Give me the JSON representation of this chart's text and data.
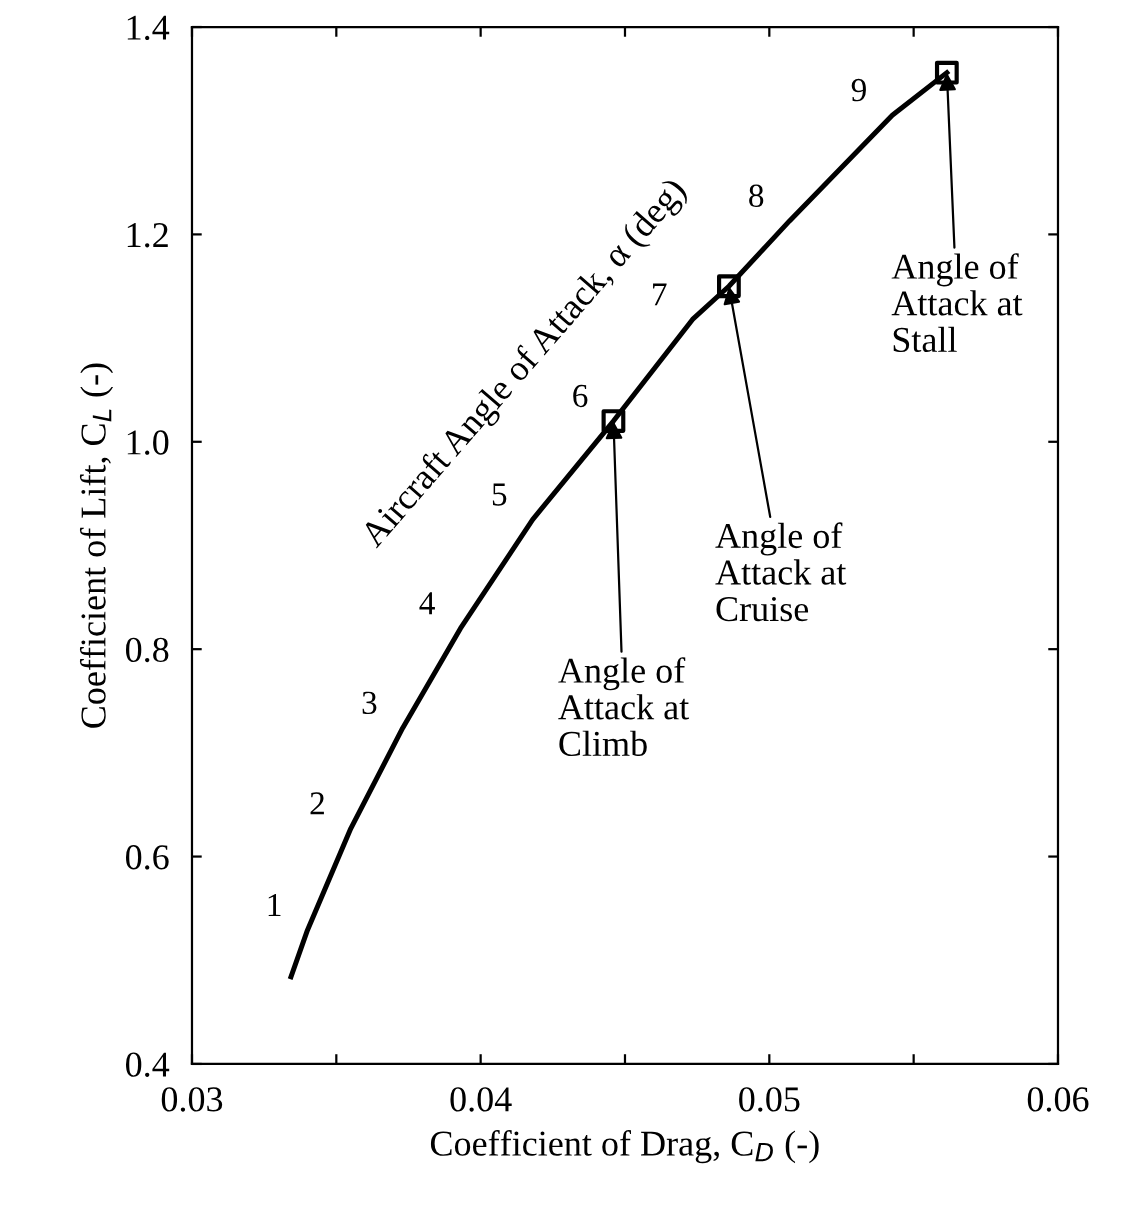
{
  "chart_data": {
    "type": "line",
    "xlabel": "Coefficient of Drag, C$_{D}$ (-)",
    "ylabel": "Coefficient of Lift, C$_{L}$ (-)",
    "xlim": [
      0.03,
      0.06
    ],
    "xticks": [
      0.03,
      {
        "value": 0.035,
        "label": null
      },
      0.04,
      {
        "value": 0.045,
        "label": null
      },
      0.05,
      {
        "value": 0.055,
        "label": null
      },
      0.06
    ],
    "ylim": [
      0.4,
      1.4
    ],
    "yticks": [
      0.4,
      0.6,
      0.8,
      {
        "value": 1.0,
        "label": "1.0"
      },
      1.2,
      1.4
    ],
    "grid": false,
    "legend": false,
    "series": [
      {
        "color": "#000000",
        "marker": "none",
        "line_style": "solid",
        "x": [
          0.03343,
          0.034,
          0.0355,
          0.0373,
          0.0393,
          0.0418,
          0.0446,
          0.04734,
          0.0486,
          0.0507,
          0.05426,
          0.05615
        ],
        "values": [
          0.484,
          0.529,
          0.627,
          0.724,
          0.82,
          0.925,
          1.02,
          1.118,
          1.15,
          1.213,
          1.315,
          1.356
        ]
      },
      {
        "type": "scatter",
        "color": "#000000",
        "marker": "square",
        "x": [
          0.0446,
          0.0486,
          0.05615
        ],
        "values": [
          1.02,
          1.15,
          1.356
        ]
      }
    ],
    "annotations": [
      "Aircraft Angle of Attack, α (deg)",
      {
        "text": "1",
        "x": 0.034,
        "y": 0.529
      },
      {
        "text": "2",
        "x": 0.0355,
        "y": 0.627
      },
      {
        "text": "3",
        "x": 0.0373,
        "y": 0.724
      },
      {
        "text": "4",
        "x": 0.0393,
        "y": 0.82
      },
      {
        "text": "5",
        "x": 0.0418,
        "y": 0.925
      },
      {
        "text": "6",
        "x": 0.0446,
        "y": 1.02
      },
      {
        "text": "7",
        "x": 0.04734,
        "y": 1.118
      },
      {
        "text": "8",
        "x": 0.0507,
        "y": 1.213
      },
      {
        "text": "9",
        "x": 0.05426,
        "y": 1.315
      },
      {
        "text": "Angle of\nAttack at\nClimb",
        "x": 0.0446,
        "y": 1.02
      },
      {
        "text": "Angle of\nAttack at\nCruise",
        "x": 0.0486,
        "y": 1.15
      },
      {
        "text": "Angle of\nAttack at\nStall",
        "x": 0.05615,
        "y": 1.356
      }
    ]
  }
}
